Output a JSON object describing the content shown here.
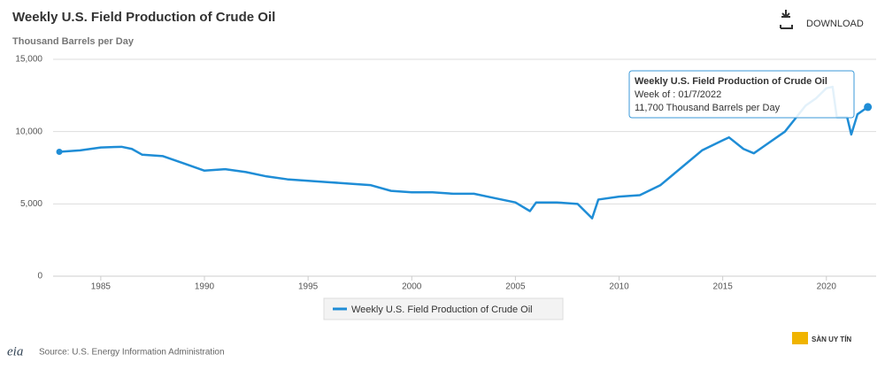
{
  "chart_data": {
    "type": "line",
    "title": "Weekly U.S. Field Production of Crude Oil",
    "subtitle": "Thousand Barrels per Day",
    "download": "DOWNLOAD",
    "source": "Source: U.S. Energy Information Administration",
    "logo": "eia",
    "watermark": "SÀN UY TÍN",
    "x": [
      1983.0,
      1984.0,
      1985.0,
      1986.0,
      1986.5,
      1987.0,
      1988.0,
      1989.0,
      1990.0,
      1991.0,
      1992.0,
      1993.0,
      1994.0,
      1995.0,
      1996.0,
      1997.0,
      1998.0,
      1999.0,
      2000.0,
      2001.0,
      2002.0,
      2003.0,
      2004.0,
      2005.0,
      2005.7,
      2006.0,
      2007.0,
      2008.0,
      2008.7,
      2009.0,
      2010.0,
      2011.0,
      2012.0,
      2013.0,
      2014.0,
      2015.0,
      2015.3,
      2016.0,
      2016.5,
      2017.0,
      2018.0,
      2018.5,
      2019.0,
      2019.5,
      2020.0,
      2020.3,
      2020.5,
      2021.0,
      2021.2,
      2021.5,
      2022.0
    ],
    "series": [
      {
        "name": "Weekly U.S. Field Production of Crude Oil",
        "color": "#1f8dd6",
        "values": [
          8600,
          8700,
          8900,
          8950,
          8800,
          8400,
          8300,
          7800,
          7300,
          7400,
          7200,
          6900,
          6700,
          6600,
          6500,
          6400,
          6300,
          5900,
          5800,
          5800,
          5700,
          5700,
          5400,
          5100,
          4500,
          5100,
          5100,
          5000,
          4000,
          5300,
          5500,
          5600,
          6300,
          7500,
          8700,
          9400,
          9600,
          8800,
          8500,
          9000,
          10000,
          10900,
          11800,
          12300,
          13000,
          13100,
          11000,
          11000,
          9800,
          11200,
          11700
        ]
      }
    ],
    "xlim": [
      1982.7,
      2022.4
    ],
    "xticks": [
      1985,
      1990,
      1995,
      2000,
      2005,
      2010,
      2015,
      2020
    ],
    "ylim": [
      0,
      15000
    ],
    "yticks": [
      0,
      {
        "value": 5000,
        "label": "5,000"
      },
      {
        "value": 10000,
        "label": "10,000"
      },
      {
        "value": 15000,
        "label": "15,000"
      }
    ],
    "grid": true,
    "tooltip": {
      "title": "Weekly U.S. Field Production of Crude Oil",
      "date": "Week of : 01/7/2022",
      "value_label": "11,700 Thousand Barrels per Day"
    }
  }
}
